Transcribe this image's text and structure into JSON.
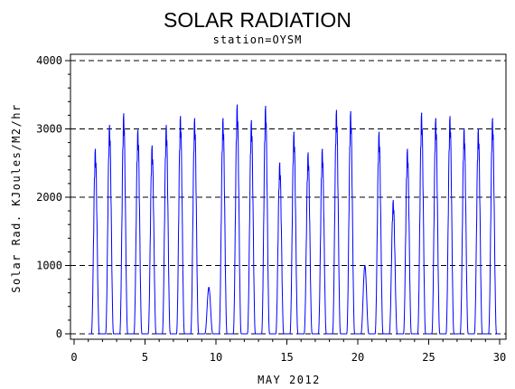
{
  "chart_data": {
    "type": "line",
    "title": "SOLAR RADIATION",
    "subtitle": "station=OYSM",
    "xlabel": "MAY 2012",
    "ylabel": "Solar Rad. KJoules/M2/hr",
    "xlim": [
      0,
      30
    ],
    "ylim": [
      0,
      4000
    ],
    "x_ticks": [
      "0",
      "5",
      "10",
      "15",
      "20",
      "25",
      "30"
    ],
    "y_ticks": [
      "0",
      "1000",
      "2000",
      "3000",
      "4000"
    ],
    "grid": "horizontal dashed",
    "series": [
      {
        "color": "#0000ff",
        "daily_peaks": [
          {
            "day": 1.5,
            "value": 2700
          },
          {
            "day": 2.5,
            "value": 3050
          },
          {
            "day": 3.5,
            "value": 3220
          },
          {
            "day": 4.5,
            "value": 2980
          },
          {
            "day": 5.5,
            "value": 2750
          },
          {
            "day": 6.5,
            "value": 3050
          },
          {
            "day": 7.5,
            "value": 3180
          },
          {
            "day": 8.5,
            "value": 3150
          },
          {
            "day": 9.5,
            "value": 680
          },
          {
            "day": 10.5,
            "value": 3150
          },
          {
            "day": 11.5,
            "value": 3350
          },
          {
            "day": 12.5,
            "value": 3120
          },
          {
            "day": 13.5,
            "value": 3330
          },
          {
            "day": 14.5,
            "value": 2500
          },
          {
            "day": 15.5,
            "value": 2950
          },
          {
            "day": 16.5,
            "value": 2650
          },
          {
            "day": 17.5,
            "value": 2700
          },
          {
            "day": 18.5,
            "value": 3270
          },
          {
            "day": 19.5,
            "value": 3250
          },
          {
            "day": 20.5,
            "value": 1000
          },
          {
            "day": 21.5,
            "value": 2950
          },
          {
            "day": 22.5,
            "value": 1950
          },
          {
            "day": 23.5,
            "value": 2700
          },
          {
            "day": 24.5,
            "value": 3230
          },
          {
            "day": 25.5,
            "value": 3150
          },
          {
            "day": 26.5,
            "value": 3180
          },
          {
            "day": 27.5,
            "value": 3000
          },
          {
            "day": 28.5,
            "value": 3000
          },
          {
            "day": 29.5,
            "value": 3150
          }
        ]
      }
    ]
  }
}
